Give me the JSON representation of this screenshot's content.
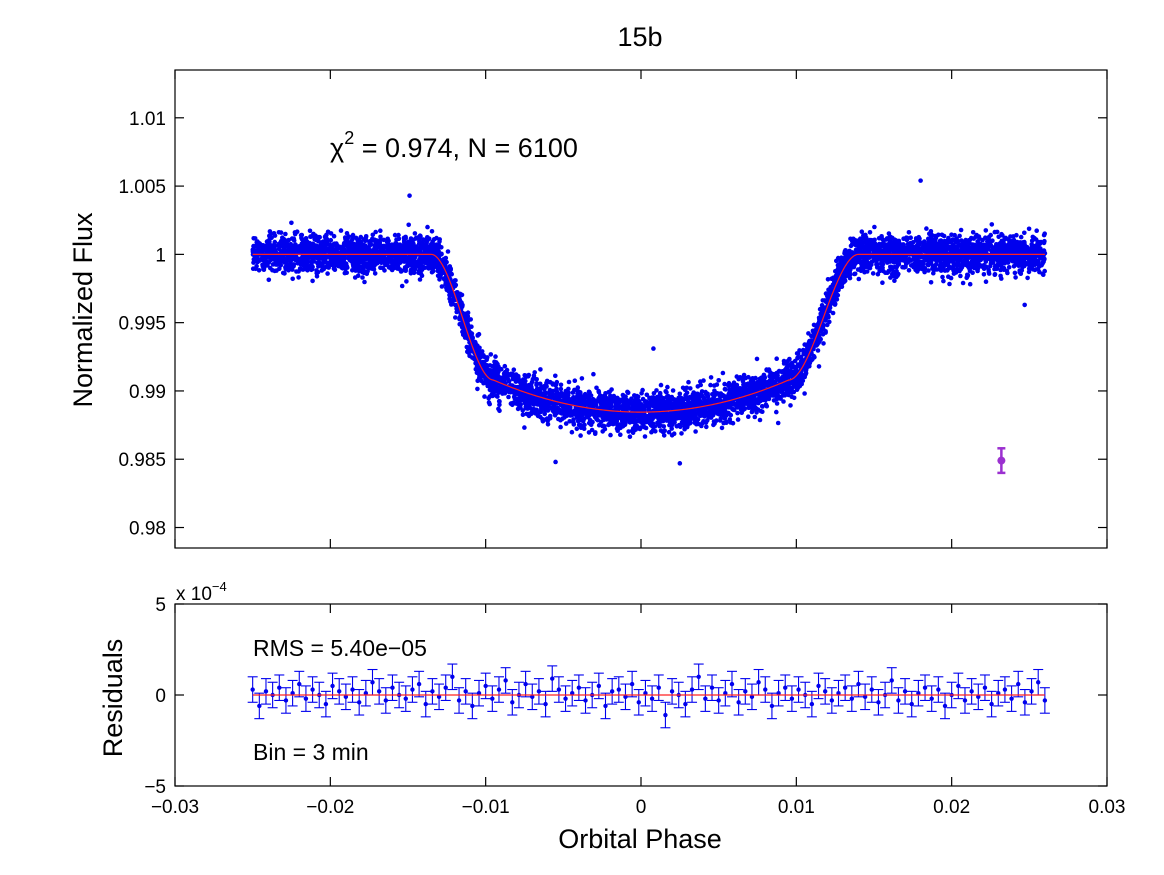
{
  "chart_data": [
    {
      "panel": "top",
      "type": "scatter",
      "title": "15b",
      "xlabel": "",
      "ylabel": "Normalized Flux",
      "xlim": [
        -0.03,
        0.03
      ],
      "ylim": [
        0.9785,
        1.0135
      ],
      "x_ticks": [
        -0.03,
        -0.02,
        -0.01,
        0,
        0.01,
        0.02,
        0.03
      ],
      "y_ticks": [
        0.98,
        0.985,
        0.99,
        0.995,
        1,
        1.005,
        1.01
      ],
      "y_tick_labels": [
        "0.98",
        "0.985",
        "0.99",
        "0.995",
        "1",
        "1.005",
        "1.01"
      ],
      "annotation": {
        "chi_symbol": "χ",
        "chi_exponent": "2",
        "text": " = 0.974, N = 6100"
      },
      "n_points": 6100,
      "transit_model": {
        "phase_range": [
          -0.025,
          0.026
        ],
        "t1": -0.0135,
        "t2": -0.0095,
        "t3": 0.0095,
        "t4": 0.014,
        "baseline": 1.0,
        "bottom_edge": 0.9908,
        "center_depth": 0.98845,
        "scatter_sigma": 0.0009,
        "outliers": [
          {
            "x": -0.0149,
            "y": 1.0043
          },
          {
            "x": 0.018,
            "y": 1.0054
          },
          {
            "x": -0.0055,
            "y": 0.9848
          },
          {
            "x": 0.0025,
            "y": 0.9847
          },
          {
            "x": 0.0008,
            "y": 0.9931
          },
          {
            "x": 0.0247,
            "y": 0.9963
          }
        ]
      },
      "error_bar_example": {
        "x": 0.0232,
        "y": 0.9849,
        "err": 0.0009,
        "color": "#9b30d0"
      },
      "colors": {
        "points": "#0000ee",
        "model": "#ff2020"
      }
    },
    {
      "panel": "bottom",
      "type": "scatter",
      "xlabel": "Orbital Phase",
      "ylabel": "Residuals",
      "xlim": [
        -0.03,
        0.03
      ],
      "ylim": [
        -5,
        5
      ],
      "y_scale_label": "x 10",
      "y_scale_exponent": "−4",
      "x_ticks": [
        -0.03,
        -0.02,
        -0.01,
        0,
        0.01,
        0.02,
        0.03
      ],
      "x_tick_labels": [
        "−0.03",
        "−0.02",
        "−0.01",
        "0",
        "0.01",
        "0.02",
        "0.03"
      ],
      "y_ticks": [
        -5,
        0,
        5
      ],
      "y_tick_labels": [
        "−5",
        "0",
        "5"
      ],
      "annotations": [
        "RMS = 5.40e−05",
        "Bin = 3 min"
      ],
      "binned_residuals": {
        "phase_range": [
          -0.025,
          0.026
        ],
        "n_bins": 120,
        "error": 0.7,
        "values": [
          0.3,
          -0.6,
          0.2,
          0.0,
          0.4,
          -0.3,
          0.1,
          0.6,
          -0.2,
          0.3,
          0.0,
          -0.5,
          0.5,
          0.2,
          -0.1,
          0.3,
          -0.4,
          0.1,
          0.7,
          0.2,
          -0.3,
          0.4,
          0.0,
          -0.2,
          0.3,
          0.6,
          -0.5,
          0.2,
          -0.1,
          0.4,
          1.0,
          -0.3,
          0.2,
          -0.6,
          0.1,
          0.5,
          -0.2,
          0.3,
          0.8,
          -0.4,
          0.0,
          0.6,
          -0.1,
          0.2,
          -0.5,
          0.9,
          0.3,
          -0.2,
          0.1,
          0.4,
          -0.3,
          0.0,
          0.5,
          -0.6,
          0.2,
          0.3,
          -0.1,
          0.6,
          -0.4,
          0.1,
          -0.2,
          0.4,
          -1.1,
          0.2,
          0.0,
          -0.5,
          0.3,
          1.0,
          -0.2,
          0.4,
          -0.3,
          0.1,
          0.6,
          -0.4,
          0.2,
          -0.1,
          0.7,
          0.3,
          -0.6,
          0.1,
          0.4,
          -0.2,
          0.3,
          0.0,
          -0.5,
          0.5,
          0.2,
          -0.3,
          0.1,
          0.4,
          -0.2,
          0.6,
          -0.1,
          0.3,
          -0.4,
          0.0,
          0.8,
          -0.3,
          0.2,
          -0.5,
          0.1,
          0.4,
          -0.2,
          0.3,
          -0.6,
          0.0,
          0.5,
          -0.3,
          0.2,
          -0.1,
          0.4,
          -0.5,
          0.1,
          0.3,
          -0.2,
          0.6,
          -0.4,
          0.2,
          0.7,
          -0.3
        ],
        "colors": {
          "points": "#0000ee",
          "model": "#ff2020"
        }
      }
    }
  ]
}
